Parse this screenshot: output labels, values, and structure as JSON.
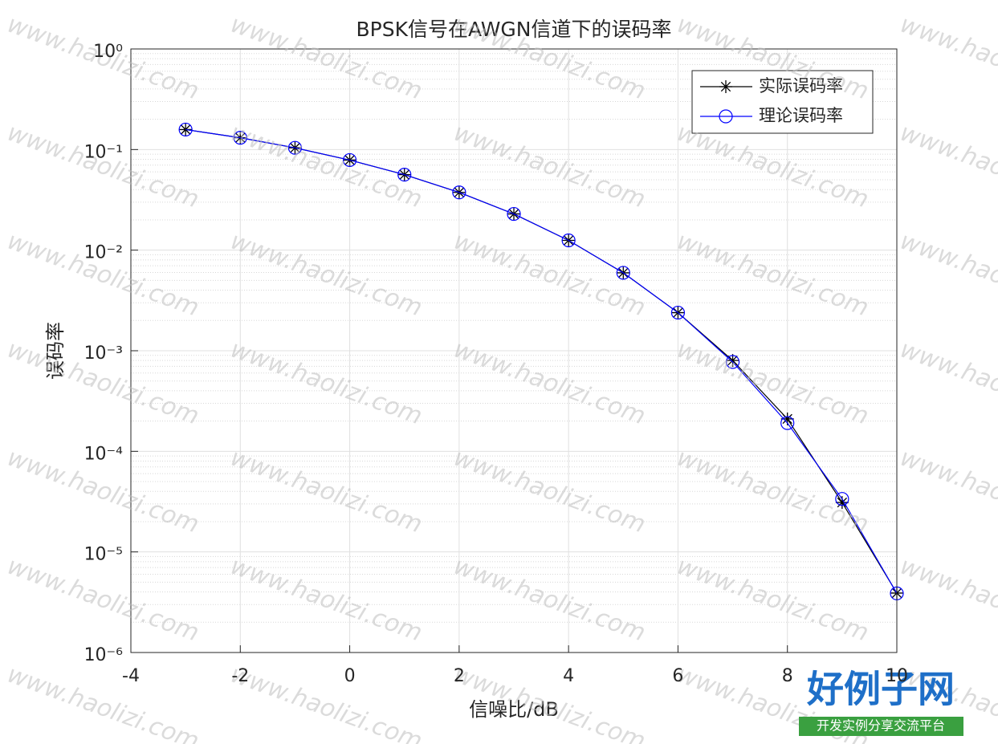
{
  "chart_data": {
    "type": "line",
    "title": "BPSK信号在AWGN信道下的误码率",
    "x_label": "信噪比/dB",
    "y_label": "误码率",
    "x": [
      -3,
      -2,
      -1,
      0,
      1,
      2,
      3,
      4,
      5,
      6,
      7,
      8,
      9,
      10
    ],
    "series": [
      {
        "name": "实际误码率",
        "color": "#000000",
        "marker": "star",
        "values": [
          0.158,
          0.131,
          0.104,
          0.0786,
          0.0563,
          0.0375,
          0.0229,
          0.0125,
          0.00595,
          0.00239,
          0.0008,
          0.00021,
          3.1e-05,
          3.9e-06
        ]
      },
      {
        "name": "理论误码率",
        "color": "#0000ff",
        "marker": "circle",
        "values": [
          0.158,
          0.131,
          0.104,
          0.0786,
          0.0563,
          0.0375,
          0.0229,
          0.0125,
          0.00595,
          0.00239,
          0.000773,
          0.000191,
          3.36e-05,
          3.87e-06
        ]
      }
    ],
    "xlim": [
      -4,
      10
    ],
    "xticks": [
      -4,
      -2,
      0,
      2,
      4,
      6,
      8,
      10
    ],
    "ylim": [
      1e-06,
      1
    ],
    "yticks": [
      {
        "value": 1e-06,
        "label": "10⁻⁶"
      },
      {
        "value": 1e-05,
        "label": "10⁻⁵"
      },
      {
        "value": 0.0001,
        "label": "10⁻⁴"
      },
      {
        "value": 0.001,
        "label": "10⁻³"
      },
      {
        "value": 0.01,
        "label": "10⁻²"
      },
      {
        "value": 0.1,
        "label": "10⁻¹"
      },
      {
        "value": 1,
        "label": "10⁰"
      }
    ],
    "log_y": true,
    "grid": true,
    "minor_grid": true,
    "legend": "upper right"
  },
  "watermark": {
    "text": "www.haolizi.com",
    "logo": "好例子网",
    "logo_subtitle": "开发实例分享交流平台"
  }
}
